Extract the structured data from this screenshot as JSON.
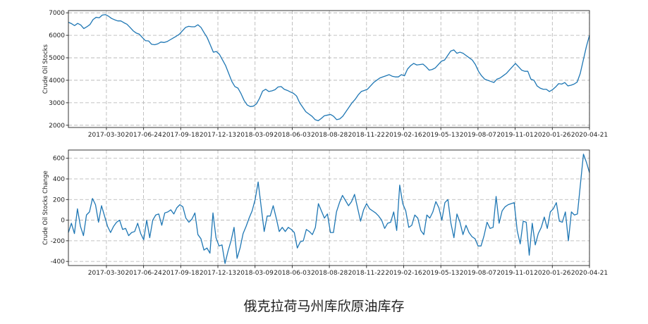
{
  "caption": "俄克拉荷马州库欣原油库存",
  "chart_data": [
    {
      "type": "line",
      "ylabel": "Crude Oil Stocks",
      "ylim": [
        1900,
        7100
      ],
      "yticks": [
        2000,
        3000,
        4000,
        5000,
        6000,
        7000
      ],
      "grid": true,
      "xticks": [
        "2017-03-30",
        "2017-06-24",
        "2017-09-18",
        "2017-12-13",
        "2018-03-09",
        "2018-06-03",
        "2018-08-28",
        "2018-11-22",
        "2019-02-16",
        "2019-05-13",
        "2019-08-07",
        "2019-11-01",
        "2020-01-26",
        "2020-04-21"
      ],
      "x_start": "2017-01-01",
      "x_end": "2020-04-21",
      "series": [
        {
          "color": "#1f77b4",
          "values": [
            6580,
            6520,
            6430,
            6530,
            6460,
            6300,
            6380,
            6480,
            6700,
            6800,
            6780,
            6900,
            6920,
            6850,
            6750,
            6690,
            6640,
            6640,
            6560,
            6490,
            6350,
            6200,
            6100,
            6050,
            5900,
            5760,
            5750,
            5600,
            5580,
            5620,
            5700,
            5680,
            5720,
            5800,
            5880,
            5960,
            6050,
            6200,
            6350,
            6400,
            6380,
            6380,
            6470,
            6350,
            6120,
            5900,
            5580,
            5250,
            5280,
            5150,
            4900,
            4650,
            4300,
            3950,
            3720,
            3650,
            3400,
            3100,
            2900,
            2830,
            2850,
            2950,
            3200,
            3520,
            3600,
            3500,
            3530,
            3580,
            3700,
            3720,
            3600,
            3550,
            3480,
            3420,
            3300,
            3000,
            2800,
            2600,
            2500,
            2400,
            2250,
            2200,
            2300,
            2420,
            2450,
            2480,
            2400,
            2250,
            2280,
            2400,
            2600,
            2800,
            3000,
            3150,
            3350,
            3500,
            3550,
            3600,
            3750,
            3900,
            4000,
            4100,
            4150,
            4200,
            4250,
            4180,
            4150,
            4150,
            4250,
            4200,
            4500,
            4650,
            4750,
            4680,
            4700,
            4720,
            4600,
            4450,
            4480,
            4550,
            4700,
            4850,
            4900,
            5100,
            5300,
            5350,
            5200,
            5250,
            5200,
            5100,
            5000,
            4900,
            4700,
            4400,
            4200,
            4050,
            4000,
            3950,
            3900,
            4050,
            4100,
            4200,
            4300,
            4450,
            4600,
            4750,
            4600,
            4450,
            4400,
            4400,
            4050,
            4000,
            3750,
            3650,
            3600,
            3600,
            3500,
            3580,
            3700,
            3850,
            3830,
            3900,
            3750,
            3780,
            3830,
            3920,
            4300,
            4900,
            5500,
            6000
          ]
        }
      ]
    },
    {
      "type": "line",
      "ylabel": "Crude Oil Stocks Change",
      "ylim": [
        -440,
        680
      ],
      "yticks": [
        -400,
        -200,
        0,
        200,
        400,
        600
      ],
      "grid": true,
      "xticks": [
        "2017-03-30",
        "2017-06-24",
        "2017-09-18",
        "2017-12-13",
        "2018-03-09",
        "2018-06-03",
        "2018-08-28",
        "2018-11-22",
        "2019-02-16",
        "2019-05-13",
        "2019-08-07",
        "2019-11-01",
        "2020-01-26",
        "2020-04-21"
      ],
      "x_start": "2017-01-01",
      "x_end": "2020-04-21",
      "series": [
        {
          "color": "#1f77b4",
          "values": [
            -120,
            -30,
            -130,
            110,
            -60,
            -150,
            50,
            80,
            210,
            150,
            -20,
            140,
            40,
            -60,
            -120,
            -60,
            -20,
            0,
            -90,
            -80,
            -150,
            -120,
            -110,
            -30,
            -130,
            -190,
            0,
            -170,
            0,
            50,
            60,
            -50,
            70,
            80,
            100,
            60,
            120,
            150,
            130,
            20,
            -20,
            10,
            70,
            -140,
            -180,
            -290,
            -270,
            -320,
            70,
            -170,
            -250,
            -240,
            -420,
            -300,
            -200,
            -70,
            -370,
            -270,
            -130,
            -60,
            20,
            90,
            200,
            370,
            130,
            -110,
            40,
            40,
            140,
            20,
            -110,
            -70,
            -110,
            -70,
            -90,
            -120,
            -270,
            -210,
            -200,
            -90,
            -110,
            -140,
            -70,
            160,
            90,
            20,
            60,
            -120,
            -120,
            80,
            170,
            240,
            190,
            140,
            180,
            250,
            120,
            -10,
            100,
            160,
            110,
            90,
            70,
            40,
            0,
            -80,
            -30,
            -20,
            80,
            -100,
            340,
            160,
            90,
            -70,
            -50,
            50,
            20,
            -100,
            -140,
            50,
            20,
            80,
            180,
            120,
            0,
            170,
            200,
            -30,
            -170,
            60,
            -20,
            -140,
            -50,
            -120,
            -160,
            -180,
            -250,
            -250,
            -150,
            -20,
            -80,
            -70,
            230,
            -30,
            90,
            130,
            150,
            160,
            170,
            -100,
            -230,
            -10,
            -20,
            -340,
            -30,
            -240,
            -130,
            -70,
            30,
            -80,
            80,
            110,
            170,
            -10,
            -20,
            80,
            -200,
            80,
            50,
            60,
            350,
            640,
            560,
            460
          ]
        }
      ]
    }
  ]
}
